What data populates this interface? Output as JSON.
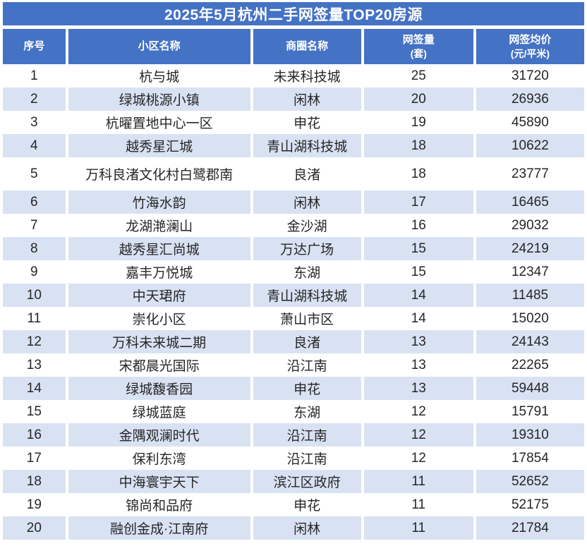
{
  "title": "2025年5月杭州二手网签量TOP20房源",
  "colors": {
    "header_blue": "#4472c4",
    "band_blue": "#d9e2f3",
    "text_dark": "#262626",
    "background": "#ffffff"
  },
  "header": {
    "columns": [
      {
        "label": "序号",
        "sublabel": ""
      },
      {
        "label": "小区名称",
        "sublabel": ""
      },
      {
        "label": "商圈名称",
        "sublabel": ""
      },
      {
        "label": "网签量",
        "sublabel": "(套)"
      },
      {
        "label": "网签均价",
        "sublabel": "(元/平米)"
      }
    ]
  },
  "chart_data": {
    "type": "table",
    "title": "2025年5月杭州二手网签量TOP20房源",
    "columns": [
      "序号",
      "小区名称",
      "商圈名称",
      "网签量(套)",
      "网签均价(元/平米)"
    ],
    "rows": [
      {
        "rank": 1,
        "community": "杭与城",
        "district": "未来科技城",
        "volume": 25,
        "avg_price": 31720
      },
      {
        "rank": 2,
        "community": "绿城桃源小镇",
        "district": "闲林",
        "volume": 20,
        "avg_price": 26936
      },
      {
        "rank": 3,
        "community": "杭曜置地中心一区",
        "district": "申花",
        "volume": 19,
        "avg_price": 45890
      },
      {
        "rank": 4,
        "community": "越秀星汇城",
        "district": "青山湖科技城",
        "volume": 18,
        "avg_price": 10622
      },
      {
        "rank": 5,
        "community": "万科良渚文化村白鹭郡南",
        "district": "良渚",
        "volume": 18,
        "avg_price": 23777
      },
      {
        "rank": 6,
        "community": "竹海水韵",
        "district": "闲林",
        "volume": 17,
        "avg_price": 16465
      },
      {
        "rank": 7,
        "community": "龙湖滟澜山",
        "district": "金沙湖",
        "volume": 16,
        "avg_price": 29032
      },
      {
        "rank": 8,
        "community": "越秀星汇尚城",
        "district": "万达广场",
        "volume": 15,
        "avg_price": 24219
      },
      {
        "rank": 9,
        "community": "嘉丰万悦城",
        "district": "东湖",
        "volume": 15,
        "avg_price": 12347
      },
      {
        "rank": 10,
        "community": "中天珺府",
        "district": "青山湖科技城",
        "volume": 14,
        "avg_price": 11485
      },
      {
        "rank": 11,
        "community": "崇化小区",
        "district": "萧山市区",
        "volume": 14,
        "avg_price": 15020
      },
      {
        "rank": 12,
        "community": "万科未来城二期",
        "district": "良渚",
        "volume": 13,
        "avg_price": 24143
      },
      {
        "rank": 13,
        "community": "宋都晨光国际",
        "district": "沿江南",
        "volume": 13,
        "avg_price": 22265
      },
      {
        "rank": 14,
        "community": "绿城馥香园",
        "district": "申花",
        "volume": 13,
        "avg_price": 59448
      },
      {
        "rank": 15,
        "community": "绿城蓝庭",
        "district": "东湖",
        "volume": 12,
        "avg_price": 15791
      },
      {
        "rank": 16,
        "community": "金隅观澜时代",
        "district": "沿江南",
        "volume": 12,
        "avg_price": 19310
      },
      {
        "rank": 17,
        "community": "保利东湾",
        "district": "沿江南",
        "volume": 12,
        "avg_price": 17854
      },
      {
        "rank": 18,
        "community": "中海寰宇天下",
        "district": "滨江区政府",
        "volume": 11,
        "avg_price": 52652
      },
      {
        "rank": 19,
        "community": "锦尚和品府",
        "district": "申花",
        "volume": 11,
        "avg_price": 52175
      },
      {
        "rank": 20,
        "community": "融创金成·江南府",
        "district": "闲林",
        "volume": 11,
        "avg_price": 21784
      }
    ]
  }
}
